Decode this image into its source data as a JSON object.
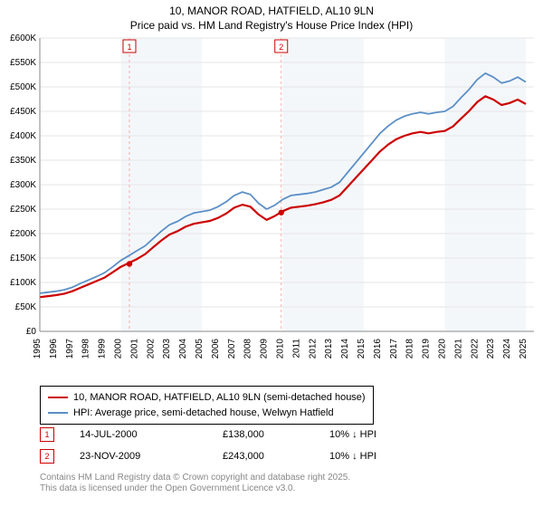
{
  "title_line1": "10, MANOR ROAD, HATFIELD, AL10 9LN",
  "title_line2": "Price paid vs. HM Land Registry's House Price Index (HPI)",
  "chart": {
    "type": "line",
    "background_color": "#ffffff",
    "panel_fill": "#eaf0f6",
    "panel_fill_opacity": 0.5,
    "grid_color": "#e6e6e6",
    "axis_color": "#888888",
    "tick_fontsize": 10,
    "x_years": [
      1995,
      1996,
      1997,
      1998,
      1999,
      2000,
      2001,
      2002,
      2003,
      2004,
      2005,
      2006,
      2007,
      2008,
      2009,
      2010,
      2011,
      2012,
      2013,
      2014,
      2015,
      2016,
      2017,
      2018,
      2019,
      2020,
      2021,
      2022,
      2023,
      2024,
      2025
    ],
    "y_ticks": [
      0,
      50000,
      100000,
      150000,
      200000,
      250000,
      300000,
      350000,
      400000,
      450000,
      500000,
      550000,
      600000
    ],
    "y_tick_labels": [
      "£0",
      "£50K",
      "£100K",
      "£150K",
      "£200K",
      "£250K",
      "£300K",
      "£350K",
      "£400K",
      "£450K",
      "£500K",
      "£550K",
      "£600K"
    ],
    "ylim": [
      0,
      600000
    ],
    "xlim": [
      1995,
      2025.5
    ],
    "alt_band_start_index": 5,
    "series": [
      {
        "name": "hpi",
        "label": "HPI: Average price, semi-detached house, Welwyn Hatfield",
        "color": "#5b8fc7",
        "width": 1.8,
        "points": [
          [
            1995.0,
            78000
          ],
          [
            1995.5,
            80000
          ],
          [
            1996.0,
            82000
          ],
          [
            1996.5,
            85000
          ],
          [
            1997.0,
            90000
          ],
          [
            1997.5,
            98000
          ],
          [
            1998.0,
            105000
          ],
          [
            1998.5,
            112000
          ],
          [
            1999.0,
            120000
          ],
          [
            1999.5,
            132000
          ],
          [
            2000.0,
            145000
          ],
          [
            2000.5,
            155000
          ],
          [
            2001.0,
            165000
          ],
          [
            2001.5,
            175000
          ],
          [
            2002.0,
            190000
          ],
          [
            2002.5,
            205000
          ],
          [
            2003.0,
            218000
          ],
          [
            2003.5,
            225000
          ],
          [
            2004.0,
            235000
          ],
          [
            2004.5,
            242000
          ],
          [
            2005.0,
            245000
          ],
          [
            2005.5,
            248000
          ],
          [
            2006.0,
            255000
          ],
          [
            2006.5,
            265000
          ],
          [
            2007.0,
            278000
          ],
          [
            2007.5,
            285000
          ],
          [
            2008.0,
            280000
          ],
          [
            2008.5,
            262000
          ],
          [
            2009.0,
            250000
          ],
          [
            2009.5,
            258000
          ],
          [
            2010.0,
            270000
          ],
          [
            2010.5,
            278000
          ],
          [
            2011.0,
            280000
          ],
          [
            2011.5,
            282000
          ],
          [
            2012.0,
            285000
          ],
          [
            2012.5,
            290000
          ],
          [
            2013.0,
            295000
          ],
          [
            2013.5,
            305000
          ],
          [
            2014.0,
            325000
          ],
          [
            2014.5,
            345000
          ],
          [
            2015.0,
            365000
          ],
          [
            2015.5,
            385000
          ],
          [
            2016.0,
            405000
          ],
          [
            2016.5,
            420000
          ],
          [
            2017.0,
            432000
          ],
          [
            2017.5,
            440000
          ],
          [
            2018.0,
            445000
          ],
          [
            2018.5,
            448000
          ],
          [
            2019.0,
            445000
          ],
          [
            2019.5,
            448000
          ],
          [
            2020.0,
            450000
          ],
          [
            2020.5,
            460000
          ],
          [
            2021.0,
            478000
          ],
          [
            2021.5,
            495000
          ],
          [
            2022.0,
            515000
          ],
          [
            2022.5,
            528000
          ],
          [
            2023.0,
            520000
          ],
          [
            2023.5,
            508000
          ],
          [
            2024.0,
            512000
          ],
          [
            2024.5,
            520000
          ],
          [
            2025.0,
            510000
          ]
        ]
      },
      {
        "name": "price_paid",
        "label": "10, MANOR ROAD, HATFIELD, AL10 9LN (semi-detached house)",
        "color": "#cc0000",
        "width": 2.2,
        "points": [
          [
            1995.0,
            70000
          ],
          [
            1995.5,
            72000
          ],
          [
            1996.0,
            74000
          ],
          [
            1996.5,
            77000
          ],
          [
            1997.0,
            82000
          ],
          [
            1997.5,
            89000
          ],
          [
            1998.0,
            96000
          ],
          [
            1998.5,
            103000
          ],
          [
            1999.0,
            110000
          ],
          [
            1999.5,
            121000
          ],
          [
            2000.0,
            132000
          ],
          [
            2000.5,
            140000
          ],
          [
            2001.0,
            148000
          ],
          [
            2001.5,
            158000
          ],
          [
            2002.0,
            172000
          ],
          [
            2002.5,
            186000
          ],
          [
            2003.0,
            198000
          ],
          [
            2003.5,
            205000
          ],
          [
            2004.0,
            214000
          ],
          [
            2004.5,
            220000
          ],
          [
            2005.0,
            223000
          ],
          [
            2005.5,
            226000
          ],
          [
            2006.0,
            232000
          ],
          [
            2006.5,
            241000
          ],
          [
            2007.0,
            253000
          ],
          [
            2007.5,
            259000
          ],
          [
            2008.0,
            255000
          ],
          [
            2008.5,
            239000
          ],
          [
            2009.0,
            228000
          ],
          [
            2009.5,
            236000
          ],
          [
            2010.0,
            246000
          ],
          [
            2010.5,
            253000
          ],
          [
            2011.0,
            255000
          ],
          [
            2011.5,
            257000
          ],
          [
            2012.0,
            260000
          ],
          [
            2012.5,
            264000
          ],
          [
            2013.0,
            269000
          ],
          [
            2013.5,
            278000
          ],
          [
            2014.0,
            296000
          ],
          [
            2014.5,
            314000
          ],
          [
            2015.0,
            332000
          ],
          [
            2015.5,
            350000
          ],
          [
            2016.0,
            368000
          ],
          [
            2016.5,
            382000
          ],
          [
            2017.0,
            393000
          ],
          [
            2017.5,
            400000
          ],
          [
            2018.0,
            405000
          ],
          [
            2018.5,
            408000
          ],
          [
            2019.0,
            405000
          ],
          [
            2019.5,
            408000
          ],
          [
            2020.0,
            410000
          ],
          [
            2020.5,
            419000
          ],
          [
            2021.0,
            435000
          ],
          [
            2021.5,
            451000
          ],
          [
            2022.0,
            469000
          ],
          [
            2022.5,
            481000
          ],
          [
            2023.0,
            474000
          ],
          [
            2023.5,
            463000
          ],
          [
            2024.0,
            467000
          ],
          [
            2024.5,
            474000
          ],
          [
            2025.0,
            465000
          ]
        ]
      }
    ],
    "sale_markers": [
      {
        "n": "1",
        "x": 2000.53,
        "y": 138000
      },
      {
        "n": "2",
        "x": 2009.9,
        "y": 243000
      }
    ],
    "marker_border_color": "#cc0000",
    "marker_dash_color": "#f0b0b0"
  },
  "legend": {
    "items": [
      {
        "color": "#cc0000",
        "label": "10, MANOR ROAD, HATFIELD, AL10 9LN (semi-detached house)"
      },
      {
        "color": "#5b8fc7",
        "label": "HPI: Average price, semi-detached house, Welwyn Hatfield"
      }
    ]
  },
  "sales_table": [
    {
      "n": "1",
      "date": "14-JUL-2000",
      "price": "£138,000",
      "delta": "10% ↓ HPI"
    },
    {
      "n": "2",
      "date": "23-NOV-2009",
      "price": "£243,000",
      "delta": "10% ↓ HPI"
    }
  ],
  "footer_line1": "Contains HM Land Registry data © Crown copyright and database right 2025.",
  "footer_line2": "This data is licensed under the Open Government Licence v3.0."
}
